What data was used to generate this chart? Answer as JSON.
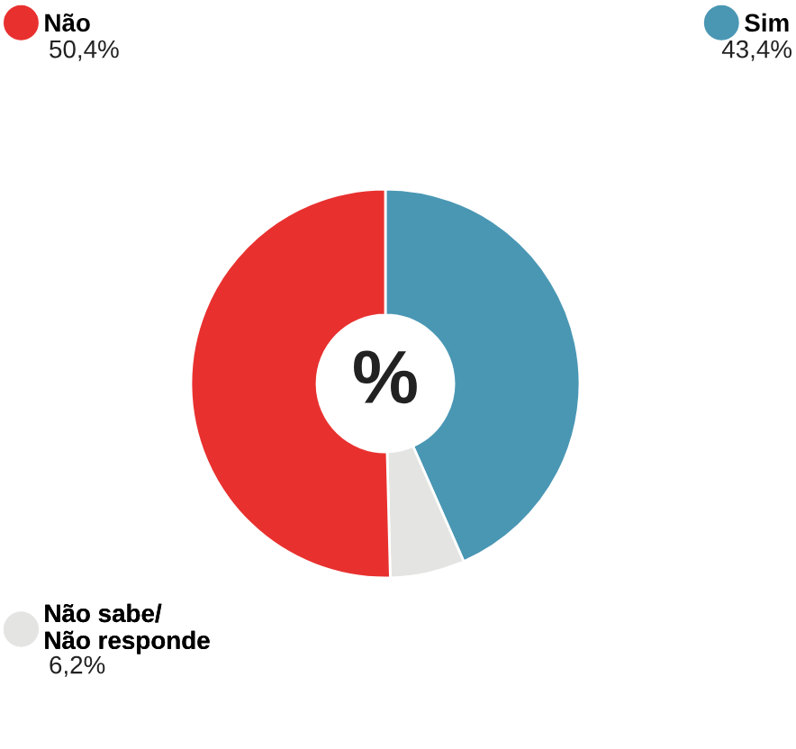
{
  "chart_data": {
    "type": "donut",
    "categories": [
      "Não",
      "Sim",
      "Não sabe/\nNão responde"
    ],
    "values": [
      50.4,
      43.4,
      6.2
    ],
    "value_labels": [
      "50,4%",
      "43,4%",
      "6,2%"
    ],
    "colors": [
      "#e8312f",
      "#4a97b4",
      "#e4e4e2"
    ],
    "annotations": [
      "%"
    ],
    "legend": "left"
  }
}
